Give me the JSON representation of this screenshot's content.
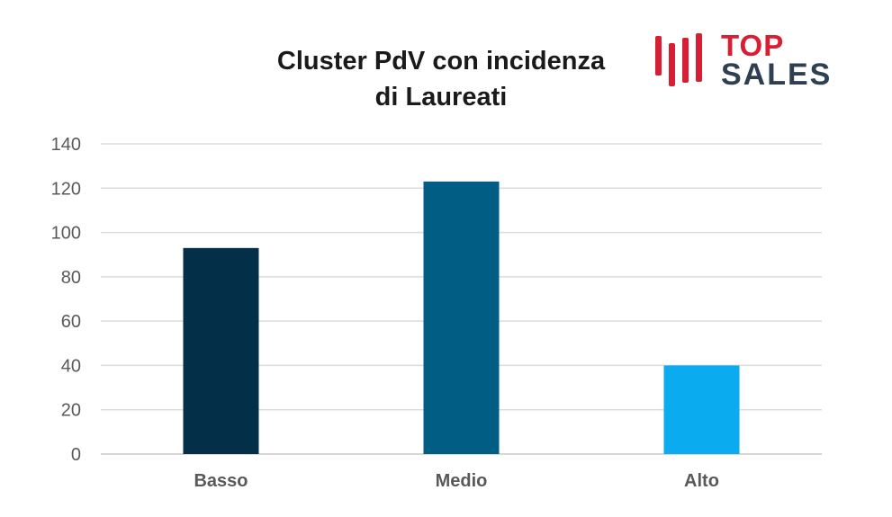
{
  "chart_data": {
    "type": "bar",
    "title_lines": [
      "Cluster PdV con incidenza",
      "di Laureati"
    ],
    "categories": [
      "Basso",
      "Medio",
      "Alto"
    ],
    "values": [
      93,
      123,
      40
    ],
    "colors": [
      "#033048",
      "#015d84",
      "#0aacef"
    ],
    "ylim": [
      0,
      140
    ],
    "yticks": [
      0,
      20,
      40,
      60,
      80,
      100,
      120,
      140
    ],
    "grid": true,
    "legend": "none",
    "xlabel": "",
    "ylabel": ""
  },
  "logo": {
    "line1": "TOP",
    "line2": "SALES",
    "colors": {
      "accent": "#d81e35",
      "dark": "#2e3f52"
    }
  }
}
